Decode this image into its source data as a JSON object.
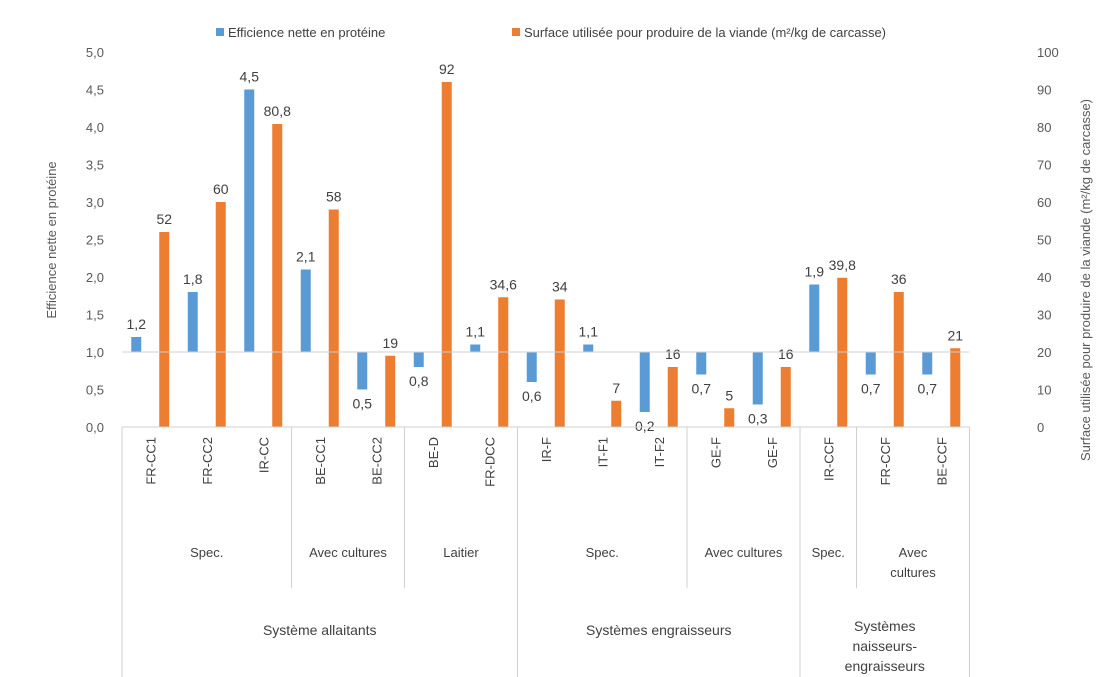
{
  "chart_data": {
    "type": "bar",
    "title": "",
    "colors": {
      "efficience": "#5b9bd5",
      "surface": "#ed7d31"
    },
    "legend": {
      "placement": "top",
      "efficience": "Efficience nette en protéine",
      "surface": "Surface utilisée pour produire de la viande (m²/kg de carcasse)"
    },
    "ylabel_left": "Efficience nette en protéine",
    "ylabel_right": "Surface utilisée pour produire de la viande (m²/kg de carcasse)",
    "ylim_left": [
      0,
      5
    ],
    "ylim_right": [
      0,
      100
    ],
    "baseline_left": 1.0,
    "left_ticks": [
      "0,0",
      "0,5",
      "1,0",
      "1,5",
      "2,0",
      "2,5",
      "3,0",
      "3,5",
      "4,0",
      "4,5",
      "5,0"
    ],
    "right_ticks": [
      "0",
      "10",
      "20",
      "30",
      "40",
      "50",
      "60",
      "70",
      "80",
      "90",
      "100"
    ],
    "categories": [
      "FR-CC1",
      "FR-CC2",
      "IR-CC",
      "BE-CC1",
      "BE-CC2",
      "BE-D",
      "FR-DCC",
      "IR-F",
      "IT-F1",
      "IT-F2",
      "GE-F",
      "GE-F",
      "IR-CCF",
      "FR-CCF",
      "BE-CCF"
    ],
    "efficience": [
      1.2,
      1.8,
      4.5,
      2.1,
      0.5,
      0.8,
      1.1,
      0.6,
      1.1,
      0.2,
      0.7,
      0.3,
      1.9,
      0.7,
      0.7
    ],
    "efficience_labels": [
      "1,2",
      "1,8",
      "4,5",
      "2,1",
      "0,5",
      "0,8",
      "1,1",
      "0,6",
      "1,1",
      "0,2",
      "0,7",
      "0,3",
      "1,9",
      "0,7",
      "0,7"
    ],
    "surface": [
      52,
      60,
      80.8,
      58,
      19,
      92,
      34.6,
      34,
      7,
      16,
      5,
      16,
      39.8,
      36,
      21
    ],
    "surface_labels": [
      "52",
      "60",
      "80,8",
      "58",
      "19",
      "92",
      "34,6",
      "34",
      "7",
      "16",
      "5",
      "16",
      "39,8",
      "36",
      "21"
    ],
    "subgroups": [
      {
        "label_lines": [
          "Spec."
        ],
        "start": 0,
        "end": 2
      },
      {
        "label_lines": [
          "Avec cultures"
        ],
        "start": 3,
        "end": 4
      },
      {
        "label_lines": [
          "Laitier"
        ],
        "start": 5,
        "end": 6
      },
      {
        "label_lines": [
          "Spec."
        ],
        "start": 7,
        "end": 9
      },
      {
        "label_lines": [
          "Avec cultures"
        ],
        "start": 10,
        "end": 11
      },
      {
        "label_lines": [
          "Spec."
        ],
        "start": 12,
        "end": 12
      },
      {
        "label_lines": [
          "Avec",
          "cultures"
        ],
        "start": 13,
        "end": 14
      }
    ],
    "groups": [
      {
        "label_lines": [
          "Système allaitants"
        ],
        "start": 0,
        "end": 6
      },
      {
        "label_lines": [
          "Systèmes engraisseurs"
        ],
        "start": 7,
        "end": 11
      },
      {
        "label_lines": [
          "Systèmes",
          "naisseurs-",
          "engraisseurs"
        ],
        "start": 12,
        "end": 14
      }
    ]
  }
}
